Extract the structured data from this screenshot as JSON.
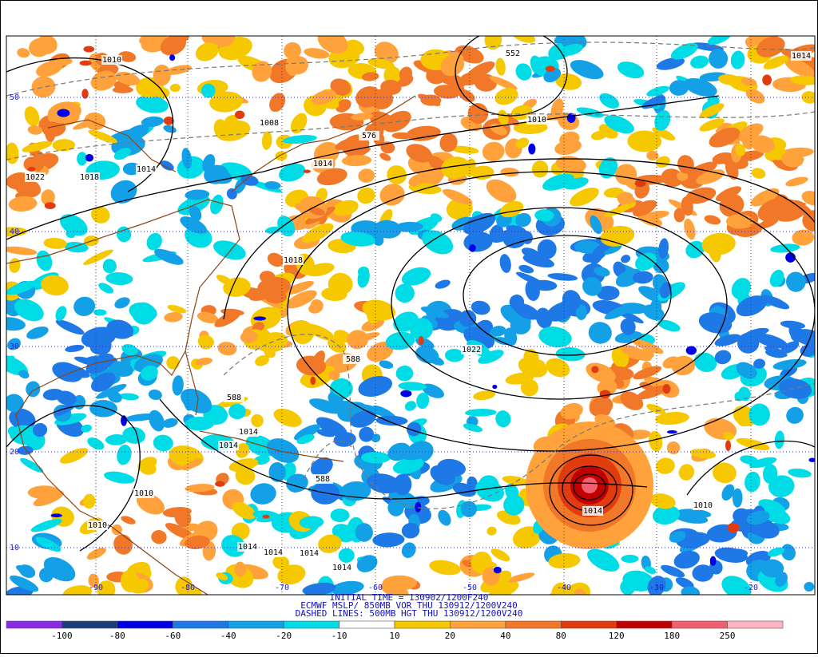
{
  "title_lines": [
    "INITIAL TIME = 130902/1200F240",
    "ECMWF MSLP/ 850MB VOR THU 130912/1200V240",
    "DASHED LINES: 500MB HGT THU 130912/1200V240"
  ],
  "colorbar": {
    "colors": [
      "#8a2be2",
      "#1c3c78",
      "#0000e6",
      "#1e78e6",
      "#14a0e6",
      "#00dce6",
      "#ffffff",
      "#f5c800",
      "#ffa23c",
      "#f07828",
      "#e03c10",
      "#c00000",
      "#f06070",
      "#ffb4c4"
    ],
    "labels": [
      "-100",
      "-80",
      "-60",
      "-40",
      "-20",
      "-10",
      "10",
      "20",
      "40",
      "80",
      "120",
      "180",
      "250"
    ]
  },
  "map": {
    "lat_labels": [
      "50",
      "40",
      "30",
      "20",
      "10"
    ],
    "lon_labels": [
      "-90",
      "-80",
      "-70",
      "-60",
      "-50",
      "-40",
      "-30",
      "-20"
    ],
    "contour_labels": [
      "1010",
      "552",
      "1014",
      "1010",
      "1008",
      "576",
      "1014",
      "1022",
      "1018",
      "1014",
      "1018",
      "1022",
      "588",
      "588",
      "1014",
      "1014",
      "1010",
      "1010",
      "1014",
      "1014",
      "1014",
      "588",
      "1010",
      "1014",
      "1014"
    ]
  }
}
